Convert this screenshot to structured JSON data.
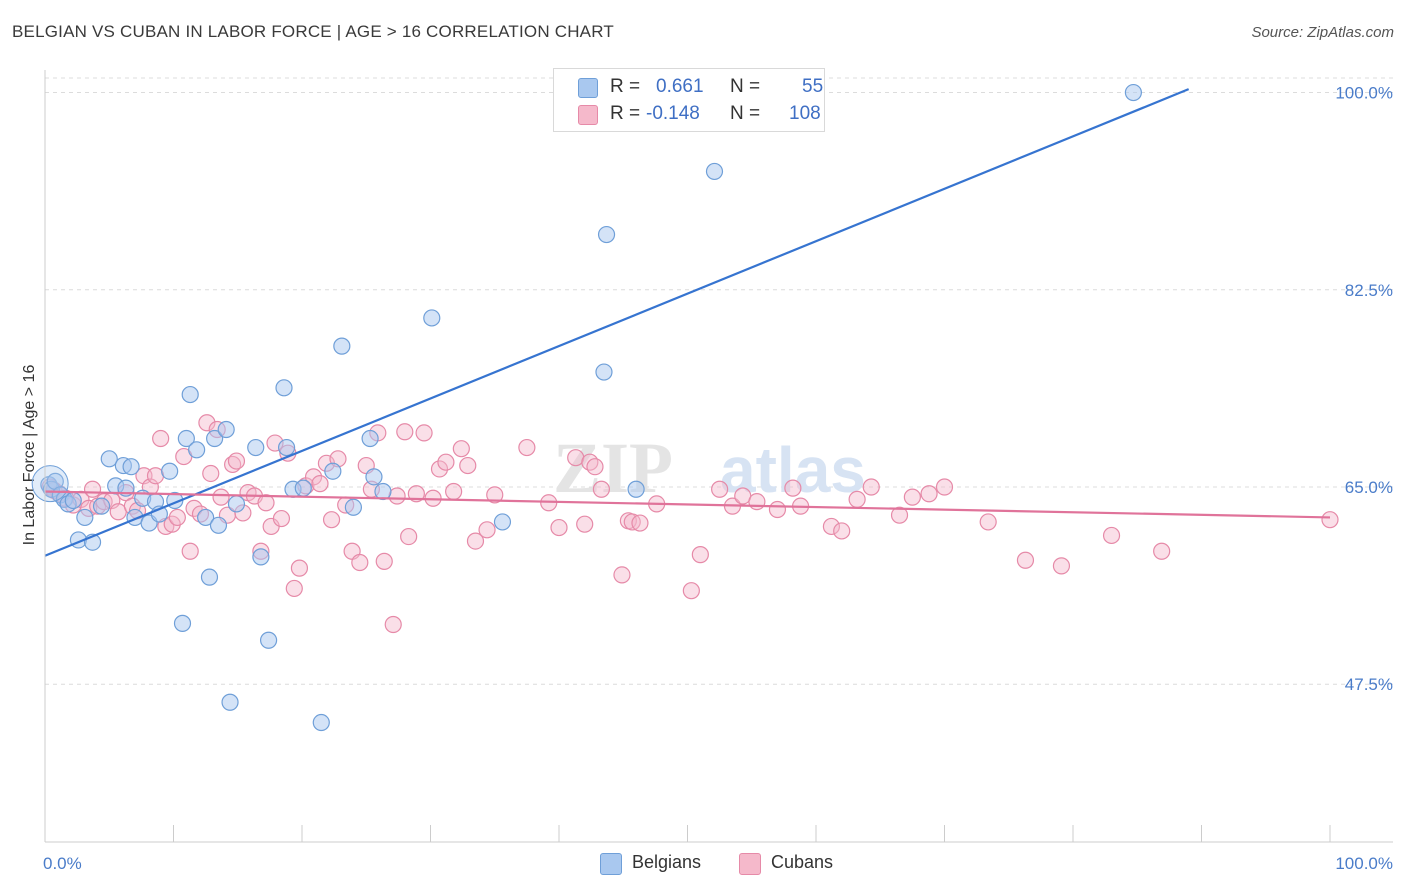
{
  "header": {
    "title": "BELGIAN VS CUBAN IN LABOR FORCE | AGE > 16 CORRELATION CHART",
    "source": "Source: ZipAtlas.com"
  },
  "legend_top": {
    "rows": [
      {
        "r_label": "R =",
        "r_value": "0.661",
        "n_label": "N =",
        "n_value": "55"
      },
      {
        "r_label": "R =",
        "r_value": "-0.148",
        "n_label": "N =",
        "n_value": "108"
      }
    ]
  },
  "legend_bottom": {
    "belgians": "Belgians",
    "cubans": "Cubans"
  },
  "colors": {
    "belgian_fill": "#a9c8ef",
    "belgian_stroke": "#6f9fd8",
    "belgian_line": "#3674d0",
    "cuban_fill": "#f5b9cb",
    "cuban_stroke": "#e68aa8",
    "cuban_line": "#e0739a",
    "tick_text": "#4a7cc9",
    "grid": "#dcdcdc"
  },
  "watermark": "ZIPatlas",
  "chart_data": {
    "type": "scatter",
    "title": "BELGIAN VS CUBAN IN LABOR FORCE | AGE > 16 CORRELATION CHART",
    "xlabel": "",
    "ylabel": "In Labor Force | Age > 16",
    "xlim": [
      0,
      100
    ],
    "ylim": [
      33.5,
      102
    ],
    "x_tick_labels": [
      "0.0%",
      "100.0%"
    ],
    "y_ticks": [
      47.5,
      65.0,
      82.5,
      100.0
    ],
    "y_tick_labels": [
      "47.5%",
      "65.0%",
      "82.5%",
      "100.0%"
    ],
    "grid": true,
    "legend": "top-center",
    "series": [
      {
        "name": "Belgians",
        "r": 0.661,
        "n": 55,
        "trend": {
          "x0": 0,
          "y0": 58.9,
          "x1": 89,
          "y1": 100.3
        },
        "points": [
          [
            0.3,
            65.2
          ],
          [
            0.5,
            64.8
          ],
          [
            0.8,
            65.5
          ],
          [
            1.2,
            64.3
          ],
          [
            1.5,
            63.9
          ],
          [
            1.8,
            63.5
          ],
          [
            2.2,
            63.8
          ],
          [
            2.6,
            60.3
          ],
          [
            3.1,
            62.3
          ],
          [
            3.7,
            60.1
          ],
          [
            4.4,
            63.3
          ],
          [
            5.0,
            67.5
          ],
          [
            5.5,
            65.1
          ],
          [
            6.1,
            66.9
          ],
          [
            6.3,
            64.9
          ],
          [
            6.7,
            66.8
          ],
          [
            7.0,
            62.3
          ],
          [
            7.6,
            64.0
          ],
          [
            8.1,
            61.8
          ],
          [
            8.6,
            63.7
          ],
          [
            8.9,
            62.6
          ],
          [
            9.7,
            66.4
          ],
          [
            10.1,
            63.8
          ],
          [
            10.7,
            52.9
          ],
          [
            11.0,
            69.3
          ],
          [
            11.3,
            73.2
          ],
          [
            11.8,
            68.3
          ],
          [
            12.5,
            62.3
          ],
          [
            12.8,
            57.0
          ],
          [
            13.2,
            69.3
          ],
          [
            13.5,
            61.6
          ],
          [
            14.1,
            70.1
          ],
          [
            14.4,
            45.9
          ],
          [
            14.9,
            63.5
          ],
          [
            16.4,
            68.5
          ],
          [
            16.8,
            58.8
          ],
          [
            17.4,
            51.4
          ],
          [
            18.6,
            73.8
          ],
          [
            18.8,
            68.5
          ],
          [
            19.3,
            64.8
          ],
          [
            20.1,
            64.9
          ],
          [
            21.5,
            44.1
          ],
          [
            22.4,
            66.4
          ],
          [
            23.1,
            77.5
          ],
          [
            24.0,
            63.2
          ],
          [
            25.3,
            69.3
          ],
          [
            25.6,
            65.9
          ],
          [
            26.3,
            64.6
          ],
          [
            30.1,
            80.0
          ],
          [
            35.6,
            61.9
          ],
          [
            43.5,
            75.2
          ],
          [
            43.7,
            87.4
          ],
          [
            46.0,
            64.8
          ],
          [
            52.1,
            93.0
          ],
          [
            84.7,
            100.0
          ]
        ]
      },
      {
        "name": "Cubans",
        "r": -0.148,
        "n": 108,
        "trend": {
          "x0": 0,
          "y0": 64.6,
          "x1": 100,
          "y1": 62.3
        },
        "points": [
          [
            0.4,
            65.0
          ],
          [
            0.7,
            64.7
          ],
          [
            1.1,
            64.4
          ],
          [
            1.6,
            64.0
          ],
          [
            2.2,
            63.4
          ],
          [
            2.8,
            63.9
          ],
          [
            3.4,
            63.1
          ],
          [
            3.7,
            64.8
          ],
          [
            4.1,
            63.3
          ],
          [
            4.6,
            63.7
          ],
          [
            5.2,
            63.8
          ],
          [
            5.7,
            62.8
          ],
          [
            6.3,
            64.5
          ],
          [
            6.8,
            63.3
          ],
          [
            7.2,
            62.9
          ],
          [
            7.7,
            66.0
          ],
          [
            8.2,
            65.0
          ],
          [
            8.6,
            66.0
          ],
          [
            9.0,
            69.3
          ],
          [
            9.4,
            61.5
          ],
          [
            9.9,
            61.7
          ],
          [
            10.3,
            62.3
          ],
          [
            10.8,
            67.7
          ],
          [
            11.3,
            59.3
          ],
          [
            11.6,
            63.1
          ],
          [
            12.1,
            62.6
          ],
          [
            12.6,
            70.7
          ],
          [
            12.9,
            66.2
          ],
          [
            13.4,
            70.1
          ],
          [
            13.7,
            64.1
          ],
          [
            14.2,
            62.5
          ],
          [
            14.6,
            67.0
          ],
          [
            14.9,
            67.3
          ],
          [
            15.4,
            62.7
          ],
          [
            15.8,
            64.5
          ],
          [
            16.3,
            64.2
          ],
          [
            16.8,
            59.3
          ],
          [
            17.2,
            63.6
          ],
          [
            17.6,
            61.5
          ],
          [
            17.9,
            68.9
          ],
          [
            18.4,
            62.2
          ],
          [
            18.9,
            68.0
          ],
          [
            19.4,
            56.0
          ],
          [
            19.8,
            57.8
          ],
          [
            20.3,
            65.1
          ],
          [
            20.9,
            65.9
          ],
          [
            21.4,
            65.3
          ],
          [
            21.9,
            67.1
          ],
          [
            22.3,
            62.1
          ],
          [
            22.8,
            67.5
          ],
          [
            23.4,
            63.4
          ],
          [
            23.9,
            59.3
          ],
          [
            24.5,
            58.3
          ],
          [
            25.0,
            66.9
          ],
          [
            25.4,
            64.8
          ],
          [
            25.9,
            69.8
          ],
          [
            26.4,
            58.4
          ],
          [
            27.1,
            52.8
          ],
          [
            27.4,
            64.2
          ],
          [
            28.0,
            69.9
          ],
          [
            28.3,
            60.6
          ],
          [
            28.9,
            64.4
          ],
          [
            29.5,
            69.8
          ],
          [
            30.2,
            64.0
          ],
          [
            30.7,
            66.6
          ],
          [
            31.2,
            67.2
          ],
          [
            31.8,
            64.6
          ],
          [
            32.4,
            68.4
          ],
          [
            32.9,
            66.9
          ],
          [
            33.5,
            60.2
          ],
          [
            34.4,
            61.2
          ],
          [
            35.0,
            64.3
          ],
          [
            37.5,
            68.5
          ],
          [
            39.2,
            63.6
          ],
          [
            40.0,
            61.4
          ],
          [
            41.3,
            67.6
          ],
          [
            42.0,
            61.7
          ],
          [
            42.4,
            67.2
          ],
          [
            42.8,
            66.8
          ],
          [
            43.3,
            64.8
          ],
          [
            44.9,
            57.2
          ],
          [
            45.4,
            62.0
          ],
          [
            45.7,
            61.9
          ],
          [
            46.3,
            61.8
          ],
          [
            47.6,
            63.5
          ],
          [
            50.3,
            55.8
          ],
          [
            51.0,
            59.0
          ],
          [
            52.5,
            64.8
          ],
          [
            53.5,
            63.3
          ],
          [
            54.3,
            64.2
          ],
          [
            55.4,
            63.7
          ],
          [
            57.0,
            63.0
          ],
          [
            58.2,
            64.9
          ],
          [
            58.8,
            63.3
          ],
          [
            61.2,
            61.5
          ],
          [
            62.0,
            61.1
          ],
          [
            63.2,
            63.9
          ],
          [
            64.3,
            65.0
          ],
          [
            66.5,
            62.5
          ],
          [
            67.5,
            64.1
          ],
          [
            68.8,
            64.4
          ],
          [
            70.0,
            65.0
          ],
          [
            73.4,
            61.9
          ],
          [
            76.3,
            58.5
          ],
          [
            79.1,
            58.0
          ],
          [
            83.0,
            60.7
          ],
          [
            86.9,
            59.3
          ],
          [
            100.0,
            62.1
          ]
        ]
      }
    ]
  }
}
